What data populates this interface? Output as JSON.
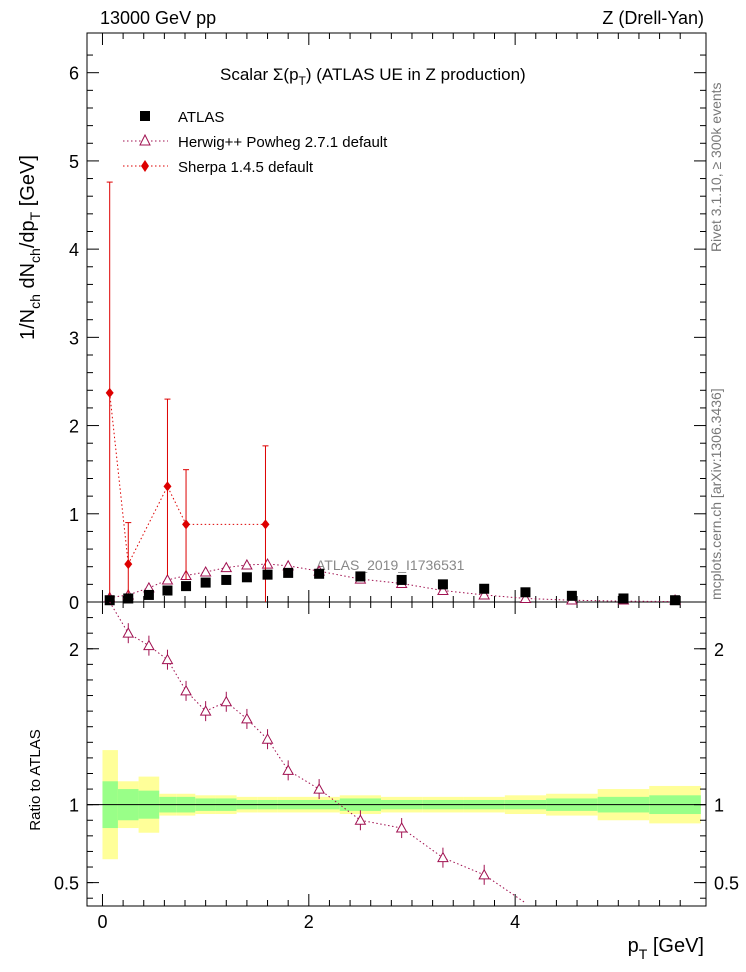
{
  "header": {
    "energy": "13000 GeV pp",
    "process": "Z (Drell-Yan)"
  },
  "side": {
    "rivet": "Rivet 3.1.10, ≥ 300k events",
    "mcplots": "mcplots.cern.ch [arXiv:1306.3436]"
  },
  "chart_data": {
    "type": "scatter",
    "title": "Scalar Σ(p_T) (ATLAS UE in Z production)",
    "title_parts": {
      "pre": "Scalar ",
      "sigma": "Σ(p",
      "sub": "T",
      "post": ") (ATLAS UE in Z production)"
    },
    "watermark": "ATLAS_2019_I1736531",
    "ylabel": "1/N_ch dN_ch/dp_T [GeV]",
    "ylabel_parts": {
      "a": "1/N",
      "a_sub": "ch",
      "b": " dN",
      "b_sub": "ch",
      "c": "/dp",
      "c_sub": "T",
      "d": " [GeV]"
    },
    "xlabel": "p_T [GeV]",
    "xlabel_parts": {
      "a": "p",
      "a_sub": "T",
      "b": " [GeV]"
    },
    "ratio_ylabel": "Ratio to ATLAS",
    "xlim": [
      -0.15,
      5.85
    ],
    "ylim": [
      0,
      6.45
    ],
    "ratio_ylim": [
      0.35,
      2.3
    ],
    "x_ticks": [
      0,
      2,
      4
    ],
    "y_ticks": [
      0,
      1,
      2,
      3,
      4,
      5,
      6
    ],
    "ratio_ticks": [
      0.5,
      1,
      2
    ],
    "legend_position": "top-left",
    "bins": [
      [
        0.0,
        0.15
      ],
      [
        0.15,
        0.35
      ],
      [
        0.35,
        0.55
      ],
      [
        0.55,
        0.72
      ],
      [
        0.72,
        0.9
      ],
      [
        0.9,
        1.1
      ],
      [
        1.1,
        1.3
      ],
      [
        1.3,
        1.5
      ],
      [
        1.5,
        1.7
      ],
      [
        1.7,
        1.9
      ],
      [
        1.9,
        2.3
      ],
      [
        2.3,
        2.7
      ],
      [
        2.7,
        3.1
      ],
      [
        3.1,
        3.5
      ],
      [
        3.5,
        3.9
      ],
      [
        3.9,
        4.3
      ],
      [
        4.3,
        4.8
      ],
      [
        4.8,
        5.3
      ],
      [
        5.3,
        5.8
      ]
    ],
    "series": [
      {
        "name": "ATLAS",
        "color": "#000000",
        "marker": "square",
        "x": [
          0.07,
          0.25,
          0.45,
          0.63,
          0.81,
          1.0,
          1.2,
          1.4,
          1.6,
          1.8,
          2.1,
          2.5,
          2.9,
          3.3,
          3.7,
          4.1,
          4.55,
          5.05,
          5.55
        ],
        "y": [
          0.02,
          0.04,
          0.08,
          0.13,
          0.18,
          0.22,
          0.25,
          0.28,
          0.31,
          0.33,
          0.32,
          0.29,
          0.25,
          0.2,
          0.15,
          0.11,
          0.07,
          0.04,
          0.02
        ]
      },
      {
        "name": "Herwig++ Powheg 2.7.1 default",
        "color": "#a01050",
        "marker": "triangle-open",
        "x": [
          0.07,
          0.25,
          0.45,
          0.63,
          0.81,
          1.0,
          1.2,
          1.4,
          1.6,
          1.8,
          2.1,
          2.5,
          2.9,
          3.3,
          3.7,
          4.1,
          4.55,
          5.05,
          5.55
        ],
        "y": [
          0.05,
          0.08,
          0.16,
          0.25,
          0.3,
          0.34,
          0.39,
          0.42,
          0.43,
          0.41,
          0.35,
          0.26,
          0.21,
          0.13,
          0.08,
          0.04,
          0.02,
          0.01,
          0.005
        ],
        "ratio": [
          2.3,
          2.1,
          2.02,
          1.93,
          1.73,
          1.6,
          1.66,
          1.55,
          1.42,
          1.22,
          1.1,
          0.9,
          0.85,
          0.66,
          0.55,
          0.37,
          null,
          null,
          null
        ]
      },
      {
        "name": "Sherpa 1.4.5 default",
        "color": "#dd0000",
        "marker": "diamond",
        "x": [
          0.07,
          0.25,
          0.63,
          0.81,
          1.58
        ],
        "y": [
          2.37,
          0.43,
          1.31,
          0.88,
          0.88
        ],
        "err_up": [
          4.76,
          0.9,
          2.3,
          1.5,
          1.77
        ],
        "err_down": [
          0.0,
          0.0,
          0.3,
          0.25,
          0.0
        ]
      }
    ],
    "ratio_band_inner": [
      0.15,
      0.1,
      0.09,
      0.05,
      0.05,
      0.04,
      0.04,
      0.03,
      0.03,
      0.03,
      0.03,
      0.04,
      0.03,
      0.03,
      0.03,
      0.03,
      0.04,
      0.05,
      0.06
    ],
    "ratio_band_outer": [
      0.35,
      0.15,
      0.18,
      0.07,
      0.07,
      0.06,
      0.06,
      0.05,
      0.05,
      0.05,
      0.05,
      0.06,
      0.05,
      0.05,
      0.05,
      0.06,
      0.07,
      0.1,
      0.12
    ]
  }
}
